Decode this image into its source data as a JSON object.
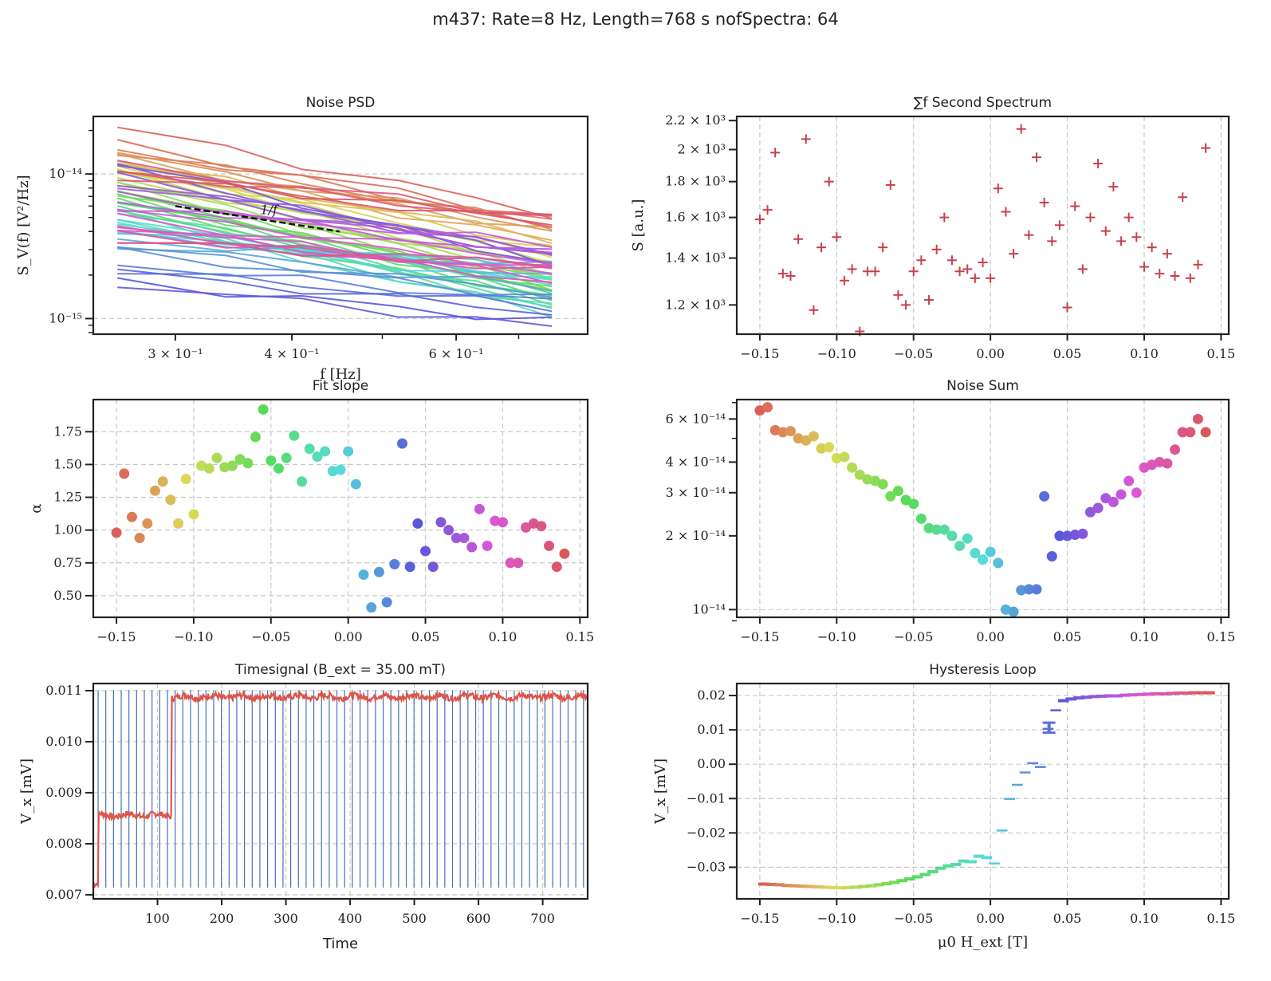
{
  "figure": {
    "suptitle": "m437: Rate=8 Hz, Length=768 s nofSpectra: 64"
  },
  "colors": {
    "second_spectrum_marker": "#c8404f",
    "timesignal_line": "#dd5548",
    "timesignal_markers": "#4a6fb5",
    "dashed_fit": "#111111"
  },
  "chart_data": [
    {
      "id": "noise_psd",
      "type": "line",
      "title": "Noise PSD",
      "xlabel": "f [Hz]",
      "ylabel": "S_V(f) [V²/Hz]",
      "xscale": "log",
      "yscale": "log",
      "xlim": [
        0.245,
        0.83
      ],
      "ylim": [
        7.8e-16,
        2.5e-14
      ],
      "xticks": [
        {
          "v": 0.3,
          "label": "3 × 10⁻¹"
        },
        {
          "v": 0.4,
          "label": "4 × 10⁻¹"
        },
        {
          "v": 0.6,
          "label": "6 × 10⁻¹"
        }
      ],
      "yticks": [
        {
          "v": 1e-14,
          "label": "10⁻¹⁴"
        },
        {
          "v": 1e-15,
          "label": "10⁻¹⁵"
        }
      ],
      "grid": "y-major",
      "annotation": {
        "text": "1/f",
        "fit_x": [
          0.3,
          0.45
        ],
        "fit_y": [
          6e-15,
          4e-15
        ]
      },
      "x": [
        0.26,
        0.34,
        0.41,
        0.52,
        0.63,
        0.76
      ],
      "series_count": 64,
      "series_start_values": [
        2.1e-14,
        1.6e-14,
        1.5e-14,
        1.45e-14,
        1.35e-14,
        1.3e-14,
        1.25e-14,
        1.2e-14,
        1.15e-14,
        1.1e-14,
        1.1e-14,
        1.05e-14,
        1e-14,
        9.5e-15,
        9e-15,
        8.5e-15,
        8.2e-15,
        8e-15,
        7.5e-15,
        7.2e-15,
        7e-15,
        6.8e-15,
        6.5e-15,
        6.3e-15,
        6e-15,
        5.8e-15,
        5.5e-15,
        5.3e-15,
        5e-15,
        4.8e-15,
        4.6e-15,
        4.4e-15,
        4.2e-15,
        4e-15,
        3.8e-15,
        3.5e-15,
        3.3e-15,
        3.1e-15,
        2.9e-15,
        2.4e-15,
        2.2e-15,
        2.1e-15,
        1.8e-15,
        1.75e-15,
        1.2e-14,
        1.1e-14,
        1e-14,
        9e-15,
        8e-15,
        7e-15,
        6.5e-15,
        6e-15,
        5.5e-15,
        5e-15,
        4.5e-15,
        4.3e-15,
        4.1e-15,
        3.9e-15,
        3.6e-15,
        3.4e-15,
        1.15e-14,
        1.05e-14,
        9.8e-15,
        1.02e-14
      ],
      "series_end_values": [
        5.3e-15,
        5e-15,
        4.6e-15,
        4.4e-15,
        4.2e-15,
        4e-15,
        3.4e-15,
        3.6e-15,
        3.2e-15,
        2.9e-15,
        2.7e-15,
        2.6e-15,
        2.4e-15,
        2.3e-15,
        2.1e-15,
        2e-15,
        1.9e-15,
        1.8e-15,
        1.7e-15,
        1.6e-15,
        1.55e-15,
        1.5e-15,
        1.45e-15,
        1.4e-15,
        1.35e-15,
        1.3e-15,
        1.25e-15,
        1.2e-15,
        1.15e-15,
        1.1e-15,
        1.9e-15,
        1.8e-15,
        1.7e-15,
        2.2e-15,
        2e-15,
        2.3e-15,
        1.6e-15,
        1.5e-15,
        1.4e-15,
        1.3e-15,
        1.2e-15,
        1.1e-15,
        9.5e-16,
        8.7e-16,
        2.5e-15,
        2.4e-15,
        2.6e-15,
        2.8e-15,
        3e-15,
        2.9e-15,
        2.7e-15,
        3.3e-15,
        2.5e-15,
        2.2e-15,
        2e-15,
        1.9e-15,
        1.8e-15,
        2.1e-15,
        2.3e-15,
        2.4e-15,
        5.1e-15,
        4.8e-15,
        4.5e-15,
        4.7e-15
      ]
    },
    {
      "id": "second_spectrum",
      "type": "scatter",
      "title": "∑f Second Spectrum",
      "xlabel": "",
      "ylabel": "S [a.u.]",
      "yscale": "log",
      "xlim": [
        -0.165,
        0.155
      ],
      "ylim": [
        1090,
        2230
      ],
      "xticks": [
        -0.15,
        -0.1,
        -0.05,
        0.0,
        0.05,
        0.1,
        0.15
      ],
      "xtick_labels": [
        "−0.15",
        "−0.10",
        "−0.05",
        "0.00",
        "0.05",
        "0.10",
        "0.15"
      ],
      "yticks": [
        1200,
        1400,
        1600,
        1800,
        2000,
        2200
      ],
      "ytick_labels": [
        "1.2 × 10³",
        "1.4 × 10³",
        "1.6 × 10³",
        "1.8 × 10³",
        "2 × 10³",
        "2.2 × 10³"
      ],
      "grid": "x",
      "marker": "+",
      "x": [
        -0.15,
        -0.145,
        -0.14,
        -0.135,
        -0.13,
        -0.125,
        -0.12,
        -0.115,
        -0.11,
        -0.105,
        -0.1,
        -0.095,
        -0.09,
        -0.085,
        -0.08,
        -0.075,
        -0.07,
        -0.065,
        -0.06,
        -0.055,
        -0.05,
        -0.045,
        -0.04,
        -0.035,
        -0.03,
        -0.025,
        -0.02,
        -0.015,
        -0.01,
        -0.005,
        0.0,
        0.005,
        0.01,
        0.015,
        0.02,
        0.025,
        0.03,
        0.035,
        0.04,
        0.045,
        0.05,
        0.055,
        0.06,
        0.065,
        0.07,
        0.075,
        0.08,
        0.085,
        0.09,
        0.095,
        0.1,
        0.105,
        0.11,
        0.115,
        0.12,
        0.125,
        0.13,
        0.135,
        0.14
      ],
      "y": [
        1590,
        1640,
        1980,
        1330,
        1320,
        1490,
        2070,
        1180,
        1450,
        1800,
        1500,
        1300,
        1350,
        1100,
        1340,
        1340,
        1450,
        1780,
        1240,
        1200,
        1340,
        1390,
        1220,
        1440,
        1600,
        1390,
        1340,
        1350,
        1310,
        1380,
        1310,
        1760,
        1630,
        1420,
        2140,
        1510,
        1950,
        1680,
        1480,
        1560,
        1190,
        1660,
        1350,
        1600,
        1910,
        1530,
        1770,
        1480,
        1600,
        1500,
        1360,
        1450,
        1330,
        1420,
        1320,
        1710,
        1310,
        1370,
        2010
      ]
    },
    {
      "id": "fit_slope",
      "type": "scatter",
      "title": "Fit slope",
      "xlabel": "",
      "ylabel": "α",
      "xlim": [
        -0.165,
        0.155
      ],
      "ylim": [
        0.335,
        1.995
      ],
      "xticks": [
        -0.15,
        -0.1,
        -0.05,
        0.0,
        0.05,
        0.1,
        0.15
      ],
      "xtick_labels": [
        "−0.15",
        "−0.10",
        "−0.05",
        "0.00",
        "0.05",
        "0.10",
        "0.15"
      ],
      "yticks": [
        0.5,
        0.75,
        1.0,
        1.25,
        1.5,
        1.75
      ],
      "ytick_labels": [
        "0.50",
        "0.75",
        "1.00",
        "1.25",
        "1.50",
        "1.75"
      ],
      "grid": "both",
      "colormap": "hls",
      "x": [
        -0.15,
        -0.145,
        -0.14,
        -0.135,
        -0.13,
        -0.125,
        -0.12,
        -0.115,
        -0.11,
        -0.105,
        -0.1,
        -0.095,
        -0.09,
        -0.085,
        -0.08,
        -0.075,
        -0.07,
        -0.065,
        -0.06,
        -0.055,
        -0.05,
        -0.045,
        -0.04,
        -0.035,
        -0.03,
        -0.025,
        -0.02,
        -0.015,
        -0.01,
        -0.005,
        0.0,
        0.005,
        0.01,
        0.015,
        0.02,
        0.025,
        0.03,
        0.035,
        0.04,
        0.045,
        0.05,
        0.055,
        0.06,
        0.065,
        0.07,
        0.075,
        0.08,
        0.085,
        0.09,
        0.095,
        0.1,
        0.105,
        0.11,
        0.115,
        0.12,
        0.125,
        0.13,
        0.135,
        0.14
      ],
      "y": [
        0.98,
        1.43,
        1.1,
        0.94,
        1.05,
        1.3,
        1.37,
        1.23,
        1.05,
        1.39,
        1.12,
        1.49,
        1.47,
        1.55,
        1.48,
        1.49,
        1.54,
        1.51,
        1.71,
        1.92,
        1.53,
        1.47,
        1.55,
        1.72,
        1.37,
        1.62,
        1.56,
        1.6,
        1.45,
        1.46,
        1.6,
        1.35,
        0.66,
        0.41,
        0.68,
        0.45,
        0.74,
        1.66,
        0.72,
        1.05,
        0.84,
        0.72,
        1.06,
        1.0,
        0.94,
        0.94,
        0.87,
        1.16,
        0.88,
        1.07,
        1.06,
        0.75,
        0.75,
        1.02,
        1.05,
        1.03,
        0.88,
        0.72,
        0.82
      ]
    },
    {
      "id": "noise_sum",
      "type": "scatter",
      "title": "Noise Sum",
      "xlabel": "",
      "ylabel": "",
      "yscale": "log",
      "xlim": [
        -0.165,
        0.155
      ],
      "ylim": [
        9.3e-15,
        7.2e-14
      ],
      "xticks": [
        -0.15,
        -0.1,
        -0.05,
        0.0,
        0.05,
        0.1,
        0.15
      ],
      "xtick_labels": [
        "−0.15",
        "−0.10",
        "−0.05",
        "0.00",
        "0.05",
        "0.10",
        "0.15"
      ],
      "yticks": [
        1e-14,
        2e-14,
        3e-14,
        4e-14,
        6e-14
      ],
      "ytick_labels": [
        "10⁻¹⁴",
        "2 × 10⁻¹⁴",
        "3 × 10⁻¹⁴",
        "4 × 10⁻¹⁴",
        "6 × 10⁻¹⁴"
      ],
      "grid": "x + y-major",
      "colormap": "hls",
      "x": [
        -0.15,
        -0.145,
        -0.14,
        -0.135,
        -0.13,
        -0.125,
        -0.12,
        -0.115,
        -0.11,
        -0.105,
        -0.1,
        -0.095,
        -0.09,
        -0.085,
        -0.08,
        -0.075,
        -0.07,
        -0.065,
        -0.06,
        -0.055,
        -0.05,
        -0.045,
        -0.04,
        -0.035,
        -0.03,
        -0.025,
        -0.02,
        -0.015,
        -0.01,
        -0.005,
        0.0,
        0.005,
        0.01,
        0.015,
        0.02,
        0.025,
        0.03,
        0.035,
        0.04,
        0.045,
        0.05,
        0.055,
        0.06,
        0.065,
        0.07,
        0.075,
        0.08,
        0.085,
        0.09,
        0.095,
        0.1,
        0.105,
        0.11,
        0.115,
        0.12,
        0.125,
        0.13,
        0.135,
        0.14
      ],
      "y": [
        6.5e-14,
        6.7e-14,
        5.4e-14,
        5.3e-14,
        5.35e-14,
        5e-14,
        4.9e-14,
        5.1e-14,
        4.55e-14,
        4.6e-14,
        4.15e-14,
        4.2e-14,
        3.8e-14,
        3.55e-14,
        3.4e-14,
        3.35e-14,
        3.25e-14,
        2.9e-14,
        3.05e-14,
        2.8e-14,
        2.7e-14,
        2.35e-14,
        2.15e-14,
        2.12e-14,
        2.12e-14,
        2e-14,
        1.82e-14,
        1.95e-14,
        1.7e-14,
        1.6e-14,
        1.72e-14,
        1.55e-14,
        1e-14,
        9.8e-15,
        1.2e-14,
        1.21e-14,
        1.21e-14,
        2.9e-14,
        1.65e-14,
        2e-14,
        2e-14,
        2.02e-14,
        2.04e-14,
        2.5e-14,
        2.6e-14,
        2.85e-14,
        2.75e-14,
        2.95e-14,
        3.35e-14,
        3e-14,
        3.8e-14,
        3.9e-14,
        4e-14,
        3.95e-14,
        4.5e-14,
        5.3e-14,
        5.3e-14,
        6e-14,
        5.3e-14
      ]
    },
    {
      "id": "timesignal",
      "type": "line",
      "title": "Timesignal (B_ext = 35.00 mT)",
      "xlabel": "Time",
      "ylabel": "V_x [mV]",
      "xlim": [
        0,
        770
      ],
      "ylim": [
        0.00692,
        0.01114
      ],
      "xticks": [
        100,
        200,
        300,
        400,
        500,
        600,
        700
      ],
      "xtick_labels": [
        "100",
        "200",
        "300",
        "400",
        "500",
        "600",
        "700"
      ],
      "yticks": [
        0.007,
        0.008,
        0.009,
        0.01,
        0.011
      ],
      "ytick_labels": [
        "0.007",
        "0.008",
        "0.009",
        "0.010",
        "0.011"
      ],
      "grid": "both",
      "levels": [
        {
          "t_start": 0,
          "t_end": 8,
          "v": 0.0072
        },
        {
          "t_start": 8,
          "t_end": 122,
          "v": 0.00856
        },
        {
          "t_start": 122,
          "t_end": 770,
          "v": 0.01088
        }
      ],
      "spectrum_markers_every_s": 12,
      "spectrum_markers_count": 64,
      "marker_range": [
        0.00714,
        0.01101
      ]
    },
    {
      "id": "hysteresis",
      "type": "line",
      "title": "Hysteresis Loop",
      "xlabel": "μ0 H_ext [T]",
      "ylabel": "V_x [mV]",
      "xlim": [
        -0.165,
        0.155
      ],
      "ylim": [
        -0.0392,
        0.0235
      ],
      "xticks": [
        -0.15,
        -0.1,
        -0.05,
        0.0,
        0.05,
        0.1,
        0.15
      ],
      "xtick_labels": [
        "−0.15",
        "−0.10",
        "−0.05",
        "0.00",
        "0.05",
        "0.10",
        "0.15"
      ],
      "yticks": [
        -0.03,
        -0.02,
        -0.01,
        0.0,
        0.01,
        0.02
      ],
      "ytick_labels": [
        "−0.03",
        "−0.02",
        "−0.01",
        "0.00",
        "0.01",
        "0.02"
      ],
      "grid": "both",
      "colormap": "hls",
      "x": [
        -0.15,
        -0.145,
        -0.14,
        -0.135,
        -0.13,
        -0.125,
        -0.12,
        -0.115,
        -0.11,
        -0.105,
        -0.1,
        -0.095,
        -0.09,
        -0.085,
        -0.08,
        -0.075,
        -0.07,
        -0.065,
        -0.06,
        -0.055,
        -0.05,
        -0.045,
        -0.04,
        -0.035,
        -0.03,
        -0.025,
        -0.02,
        -0.015,
        -0.01,
        -0.005,
        0.0,
        0.005,
        0.01,
        0.015,
        0.02,
        0.025,
        0.03,
        0.035,
        0.04,
        0.045,
        0.05,
        0.055,
        0.06,
        0.065,
        0.07,
        0.075,
        0.08,
        0.085,
        0.09,
        0.095,
        0.1,
        0.105,
        0.11,
        0.115,
        0.12,
        0.125,
        0.13,
        0.135,
        0.14
      ],
      "y": [
        -0.0349,
        -0.035,
        -0.0351,
        -0.0353,
        -0.0354,
        -0.0355,
        -0.0356,
        -0.0357,
        -0.0358,
        -0.0359,
        -0.036,
        -0.0359,
        -0.0358,
        -0.0356,
        -0.0354,
        -0.0351,
        -0.0348,
        -0.0344,
        -0.0339,
        -0.0334,
        -0.0328,
        -0.0321,
        -0.0313,
        -0.0303,
        -0.0296,
        -0.0292,
        -0.0282,
        -0.0284,
        -0.0268,
        -0.0272,
        -0.0289,
        -0.0193,
        -0.0101,
        -0.006,
        -0.0024,
        0.0003,
        -0.0008,
        0.0103,
        0.0157,
        0.0185,
        0.019,
        0.0193,
        0.0195,
        0.0197,
        0.0198,
        0.0199,
        0.0199,
        0.0201,
        0.0202,
        0.0203,
        0.0204,
        0.0205,
        0.0205,
        0.0206,
        0.0207,
        0.0207,
        0.0208,
        0.0208,
        0.0208
      ],
      "errorbar": {
        "x": 0.035,
        "y_low": 0.0092,
        "y_high": 0.0121
      }
    }
  ]
}
